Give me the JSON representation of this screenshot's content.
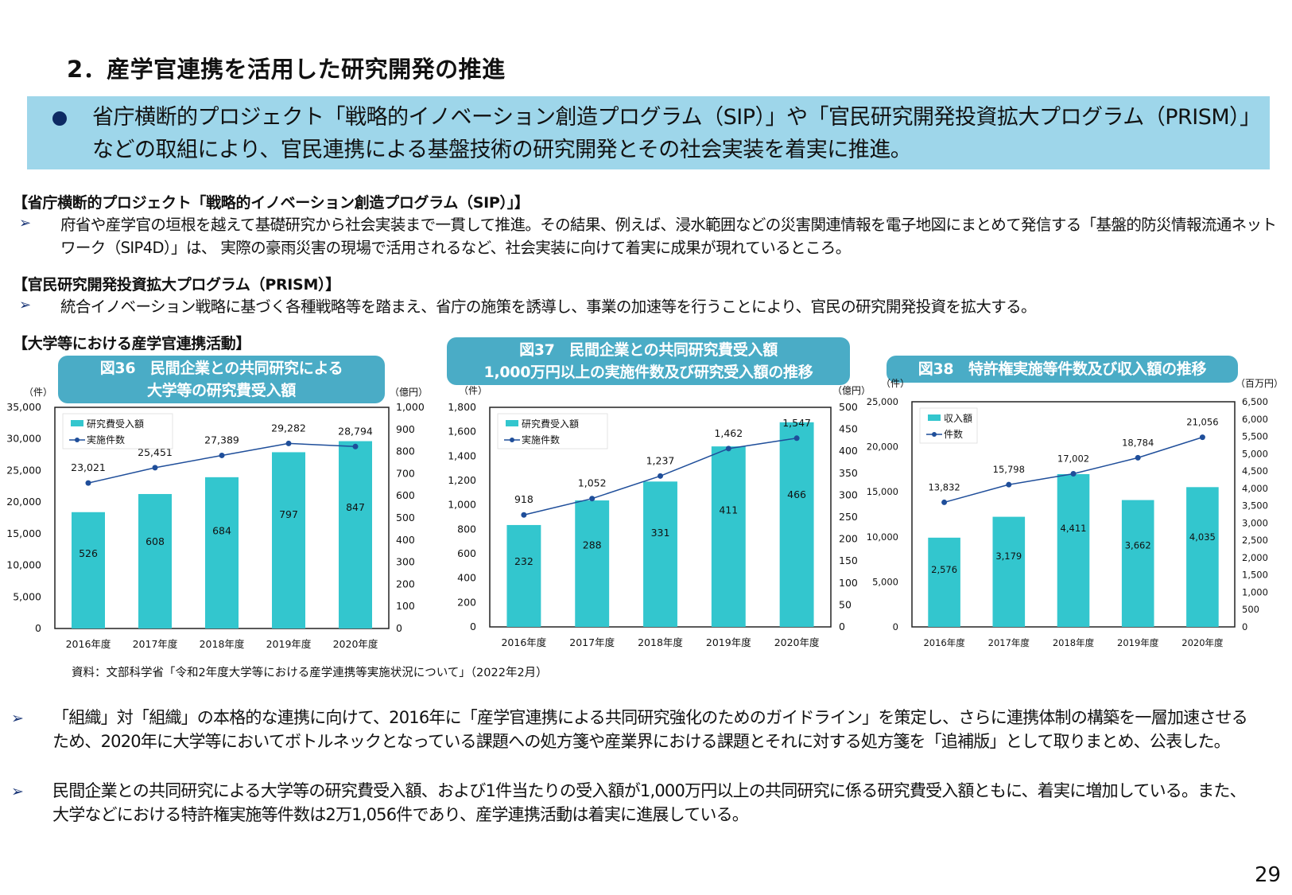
{
  "heading": "2．産学官連携を活用した研究開発の推進",
  "banner": {
    "bullet_icon": "filled-circle-bullet",
    "text": "省庁横断的プロジェクト「戦略的イノベーション創造プログラム（SIP）」や「官民研究開発投資拡大プログラム（PRISM）」などの取組により、官民連携による基盤技術の研究開発とその社会実装を着実に推進。",
    "color": "#9ed6ea"
  },
  "sections": [
    {
      "title": "【省庁横断的プロジェクト「戦略的イノベーション創造プログラム（SIP）」】",
      "bullets": [
        "府省や産学官の垣根を越えて基礎研究から社会実装まで一貫して推進。その結果、例えば、浸水範囲などの災害関連情報を電子地図にまとめて発信する「基盤的防災情報流通ネットワーク（SIP4D）」は、 実際の豪雨災害の現場で活用されるなど、社会実装に向けて着実に成果が現れているところ。"
      ]
    },
    {
      "title": "【官民研究開発投資拡大プログラム（PRISM）】",
      "bullets": [
        "統合イノベーション戦略に基づく各種戦略等を踏まえ、省庁の施策を誘導し、事業の加速等を行うことにより、官民の研究開発投資を拡大する。"
      ]
    },
    {
      "title": "【大学等における産学官連携活動】"
    }
  ],
  "arrow_icon": "arrowhead-bullet",
  "chart_titles": [
    [
      "図36　民間企業との共同研究による",
      "大学等の研究費受入額"
    ],
    [
      "図37　民間企業との共同研究費受入額",
      "1,000万円以上の実施件数及び研究受入額の推移"
    ],
    [
      "図38　特許権実施等件数及び収入額の推移"
    ]
  ],
  "chart_data": [
    {
      "type": "bar+line",
      "title": "図36　民間企業との共同研究による大学等の研究費受入額",
      "categories": [
        "2016年度",
        "2017年度",
        "2018年度",
        "2019年度",
        "2020年度"
      ],
      "y_left": {
        "unit": "（件）",
        "range": [
          0,
          35000
        ],
        "ticks": [
          "0",
          "5,000",
          "10,000",
          "15,000",
          "20,000",
          "25,000",
          "30,000",
          "35,000"
        ]
      },
      "y_right": {
        "unit": "（億円）",
        "range": [
          0,
          1000
        ],
        "ticks": [
          "0",
          "100",
          "200",
          "300",
          "400",
          "500",
          "600",
          "700",
          "800",
          "900",
          "1,000"
        ]
      },
      "series": [
        {
          "name": "研究費受入額",
          "type": "bar",
          "axis": "right",
          "values": [
            526,
            608,
            684,
            797,
            847
          ],
          "labels": [
            "526",
            "608",
            "684",
            "797",
            "847"
          ]
        },
        {
          "name": "実施件数",
          "type": "line",
          "axis": "left",
          "values": [
            23021,
            25451,
            27389,
            29282,
            28794
          ],
          "labels": [
            "23,021",
            "25,451",
            "27,389",
            "29,282",
            "28,794"
          ]
        }
      ],
      "legend": "top-left",
      "grid": false
    },
    {
      "type": "bar+line",
      "title": "図37　民間企業との共同研究費受入額1,000万円以上の実施件数及び研究受入額の推移",
      "categories": [
        "2016年度",
        "2017年度",
        "2018年度",
        "2019年度",
        "2020年度"
      ],
      "y_left": {
        "unit": "（件）",
        "range": [
          0,
          1800
        ],
        "ticks": [
          "0",
          "200",
          "400",
          "600",
          "800",
          "1,000",
          "1,200",
          "1,400",
          "1,600",
          "1,800"
        ]
      },
      "y_right": {
        "unit": "（億円）",
        "range": [
          0,
          500
        ],
        "ticks": [
          "0",
          "50",
          "100",
          "150",
          "200",
          "250",
          "300",
          "350",
          "400",
          "450",
          "500"
        ]
      },
      "series": [
        {
          "name": "研究費受入額",
          "type": "bar",
          "axis": "right",
          "values": [
            232,
            288,
            331,
            411,
            466
          ],
          "labels": [
            "232",
            "288",
            "331",
            "411",
            "466"
          ]
        },
        {
          "name": "実施件数",
          "type": "line",
          "axis": "left",
          "values": [
            918,
            1052,
            1237,
            1462,
            1547
          ],
          "labels": [
            "918",
            "1,052",
            "1,237",
            "1,462",
            "1,547"
          ]
        }
      ],
      "legend": "top-left",
      "grid": false
    },
    {
      "type": "bar+line",
      "title": "図38　特許権実施等件数及び収入額の推移",
      "categories": [
        "2016年度",
        "2017年度",
        "2018年度",
        "2019年度",
        "2020年度"
      ],
      "y_left": {
        "unit": "（件）",
        "range": [
          0,
          25000
        ],
        "ticks": [
          "0",
          "5,000",
          "10,000",
          "15,000",
          "20,000",
          "25,000"
        ]
      },
      "y_right": {
        "unit": "（百万円）",
        "range": [
          0,
          6500
        ],
        "ticks": [
          "0",
          "500",
          "1,000",
          "1,500",
          "2,000",
          "2,500",
          "3,000",
          "3,500",
          "4,000",
          "4,500",
          "5,000",
          "5,500",
          "6,000",
          "6,500"
        ]
      },
      "series": [
        {
          "name": "収入額",
          "type": "bar",
          "axis": "right",
          "values": [
            2576,
            3179,
            4411,
            3662,
            4035
          ],
          "labels": [
            "2,576",
            "3,179",
            "4,411",
            "3,662",
            "4,035"
          ]
        },
        {
          "name": "件数",
          "type": "line",
          "axis": "left",
          "values": [
            13832,
            15798,
            17002,
            18784,
            21056
          ],
          "labels": [
            "13,832",
            "15,798",
            "17,002",
            "18,784",
            "21,056"
          ]
        }
      ],
      "legend": "top-left",
      "grid": false
    }
  ],
  "colors": {
    "bar": "#33c6ce",
    "line": "#1f4e9a",
    "title_box": "#4aacc6"
  },
  "source": "資料：文部科学省「令和2年度大学等における産学連携等実施状況について」（2022年2月）",
  "bottom_bullets": [
    "「組織」対「組織」の本格的な連携に向けて、2016年に「産学官連携による共同研究強化のためのガイドライン」を策定し、さらに連携体制の構築を一層加速させるため、2020年に大学等においてボトルネックとなっている課題への処方箋や産業界における課題とそれに対する処方箋を「追補版」として取りまとめ、公表した。",
    "民間企業との共同研究による大学等の研究費受入額、および1件当たりの受入額が1,000万円以上の共同研究に係る研究費受入額ともに、着実に増加している。また、大学などにおける特許権実施等件数は2万1,056件であり、産学連携活動は着実に進展している。"
  ],
  "page_number": "29"
}
